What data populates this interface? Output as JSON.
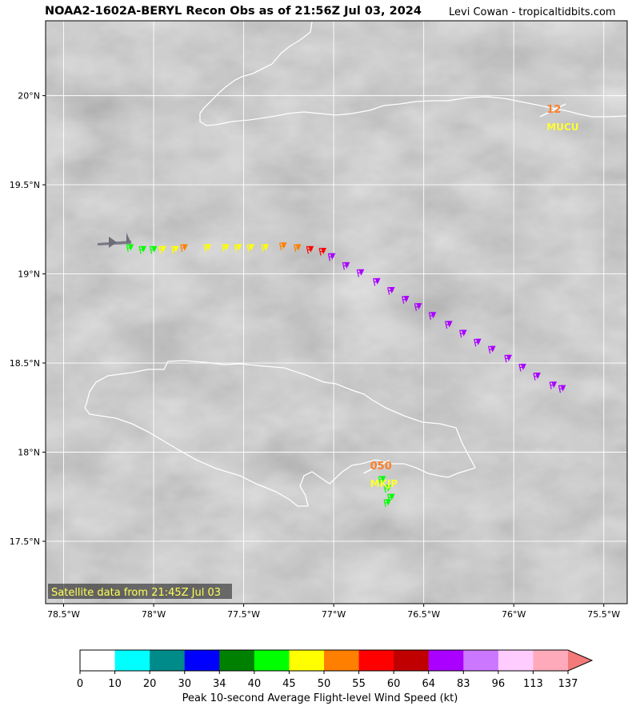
{
  "title": "NOAA2-1602A-BERYL Recon Obs as of 21:56Z Jul 03, 2024",
  "credit": "Levi Cowan - tropicaltidbits.com",
  "satellite_note": "Satellite data from 21:45Z Jul 03",
  "x_ticks": [
    {
      "lon": -78.5,
      "label": "78.5°W"
    },
    {
      "lon": -78.0,
      "label": "78°W"
    },
    {
      "lon": -77.5,
      "label": "77.5°W"
    },
    {
      "lon": -77.0,
      "label": "77°W"
    },
    {
      "lon": -76.5,
      "label": "76.5°W"
    },
    {
      "lon": -76.0,
      "label": "76°W"
    },
    {
      "lon": -75.5,
      "label": "75.5°W"
    }
  ],
  "y_ticks": [
    {
      "lat": 20.0,
      "label": "20°N"
    },
    {
      "lat": 19.5,
      "label": "19.5°N"
    },
    {
      "lat": 19.0,
      "label": "19°N"
    },
    {
      "lat": 18.5,
      "label": "18.5°N"
    },
    {
      "lat": 18.0,
      "label": "18°N"
    },
    {
      "lat": 17.5,
      "label": "17.5°N"
    }
  ],
  "stations": [
    {
      "id": "MUCU",
      "value": "12",
      "lon": -75.8,
      "lat": 19.9
    },
    {
      "id": "MKJP",
      "value": "050",
      "lon": -76.78,
      "lat": 17.9
    }
  ],
  "colorbar": {
    "label": "Peak 10-second Average Flight-level Wind Speed (kt)",
    "ticks": [
      "0",
      "10",
      "20",
      "30",
      "34",
      "40",
      "45",
      "50",
      "55",
      "60",
      "64",
      "83",
      "96",
      "113",
      "137"
    ],
    "colors": [
      "#ffffff",
      "#00ffff",
      "#008b8b",
      "#0000ff",
      "#008000",
      "#00ff00",
      "#ffff00",
      "#ff7f00",
      "#ff0000",
      "#c00000",
      "#aa00ff",
      "#cc77ff",
      "#ffccff",
      "#ffaabb"
    ],
    "extend_color": "#f47a7a"
  },
  "chart_data": {
    "type": "scatter",
    "title": "NOAA2-1602A-BERYL Recon Obs as of 21:56Z Jul 03, 2024",
    "xlim": [
      -78.6,
      -75.37
    ],
    "ylim": [
      17.15,
      20.42
    ],
    "xlabel": "",
    "ylabel": "",
    "series": [
      {
        "name": "",
        "color": "#00ff00",
        "points": [
          [
            -78.15,
            19.15
          ],
          [
            -78.08,
            19.14
          ],
          [
            -78.02,
            19.14
          ]
        ]
      },
      {
        "name": "",
        "color": "#ffff00",
        "points": [
          [
            -77.97,
            19.14
          ],
          [
            -77.9,
            19.14
          ],
          [
            -77.72,
            19.15
          ],
          [
            -77.62,
            19.15
          ],
          [
            -77.55,
            19.15
          ],
          [
            -77.48,
            19.15
          ],
          [
            -77.4,
            19.15
          ]
        ]
      },
      {
        "name": "",
        "color": "#ff7f00",
        "points": [
          [
            -77.85,
            19.15
          ],
          [
            -77.3,
            19.16
          ],
          [
            -77.22,
            19.15
          ]
        ]
      },
      {
        "name": "",
        "color": "#ff0000",
        "points": [
          [
            -77.15,
            19.14
          ],
          [
            -77.08,
            19.13
          ]
        ]
      },
      {
        "name": "",
        "color": "#aa00ff",
        "points": [
          [
            -77.03,
            19.1
          ],
          [
            -76.95,
            19.05
          ],
          [
            -76.87,
            19.01
          ],
          [
            -76.78,
            18.96
          ],
          [
            -76.7,
            18.91
          ],
          [
            -76.62,
            18.86
          ],
          [
            -76.55,
            18.82
          ],
          [
            -76.47,
            18.77
          ],
          [
            -76.38,
            18.72
          ],
          [
            -76.3,
            18.67
          ],
          [
            -76.22,
            18.62
          ],
          [
            -76.14,
            18.58
          ],
          [
            -76.05,
            18.53
          ],
          [
            -75.97,
            18.48
          ],
          [
            -75.89,
            18.43
          ],
          [
            -75.8,
            18.38
          ],
          [
            -75.75,
            18.36
          ]
        ]
      },
      {
        "name": "",
        "color": "#00ff00",
        "points": [
          [
            -76.75,
            17.85
          ],
          [
            -76.72,
            17.8
          ],
          [
            -76.7,
            17.75
          ],
          [
            -76.72,
            17.72
          ]
        ]
      }
    ]
  }
}
